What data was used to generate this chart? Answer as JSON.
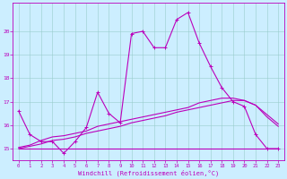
{
  "bg_color": "#cceeff",
  "line_color": "#bb00bb",
  "grid_color": "#99cccc",
  "xlabel": "Windchill (Refroidissement éolien,°C)",
  "xlim": [
    -0.5,
    23.5
  ],
  "ylim": [
    14.5,
    21.2
  ],
  "yticks": [
    15,
    16,
    17,
    18,
    19,
    20
  ],
  "xticks": [
    0,
    1,
    2,
    3,
    4,
    5,
    6,
    7,
    8,
    9,
    10,
    11,
    12,
    13,
    14,
    15,
    16,
    17,
    18,
    19,
    20,
    21,
    22,
    23
  ],
  "line1_x": [
    0,
    1,
    2,
    3,
    4,
    5,
    6,
    7,
    8,
    9,
    10,
    11,
    12,
    13,
    14,
    15,
    16,
    17,
    18,
    19,
    20,
    21,
    22,
    23
  ],
  "line1_y": [
    16.6,
    15.6,
    15.3,
    15.3,
    14.8,
    15.3,
    15.9,
    17.4,
    16.5,
    16.1,
    19.9,
    20.0,
    19.3,
    19.3,
    20.5,
    20.8,
    19.5,
    18.5,
    17.6,
    17.0,
    16.8,
    15.6,
    15.0,
    15.0
  ],
  "line2_x": [
    0,
    1,
    2,
    3,
    4,
    5,
    6,
    7,
    8,
    9,
    10,
    11,
    12,
    13,
    14,
    15,
    16,
    17,
    18,
    19,
    20,
    21,
    22,
    23
  ],
  "line2_y": [
    15.0,
    15.0,
    15.0,
    15.0,
    15.0,
    15.0,
    15.0,
    15.0,
    15.0,
    15.0,
    15.0,
    15.0,
    15.0,
    15.0,
    15.0,
    15.0,
    15.0,
    15.0,
    15.0,
    15.0,
    15.0,
    15.0,
    15.0,
    15.0
  ],
  "line3_x": [
    0,
    1,
    2,
    3,
    4,
    5,
    6,
    7,
    8,
    9,
    10,
    11,
    12,
    13,
    14,
    15,
    16,
    17,
    18,
    19,
    20,
    21,
    22,
    23
  ],
  "line3_y": [
    15.0,
    15.1,
    15.2,
    15.35,
    15.4,
    15.5,
    15.65,
    15.75,
    15.85,
    15.95,
    16.1,
    16.2,
    16.3,
    16.4,
    16.55,
    16.65,
    16.75,
    16.85,
    16.95,
    17.05,
    17.05,
    16.85,
    16.35,
    15.95
  ],
  "line4_x": [
    0,
    1,
    2,
    3,
    4,
    5,
    6,
    7,
    8,
    9,
    10,
    11,
    12,
    13,
    14,
    15,
    16,
    17,
    18,
    19,
    20,
    21,
    22,
    23
  ],
  "line4_y": [
    15.05,
    15.15,
    15.35,
    15.5,
    15.55,
    15.65,
    15.75,
    15.95,
    16.05,
    16.15,
    16.25,
    16.35,
    16.45,
    16.55,
    16.65,
    16.75,
    16.95,
    17.05,
    17.15,
    17.15,
    17.05,
    16.85,
    16.45,
    16.05
  ]
}
